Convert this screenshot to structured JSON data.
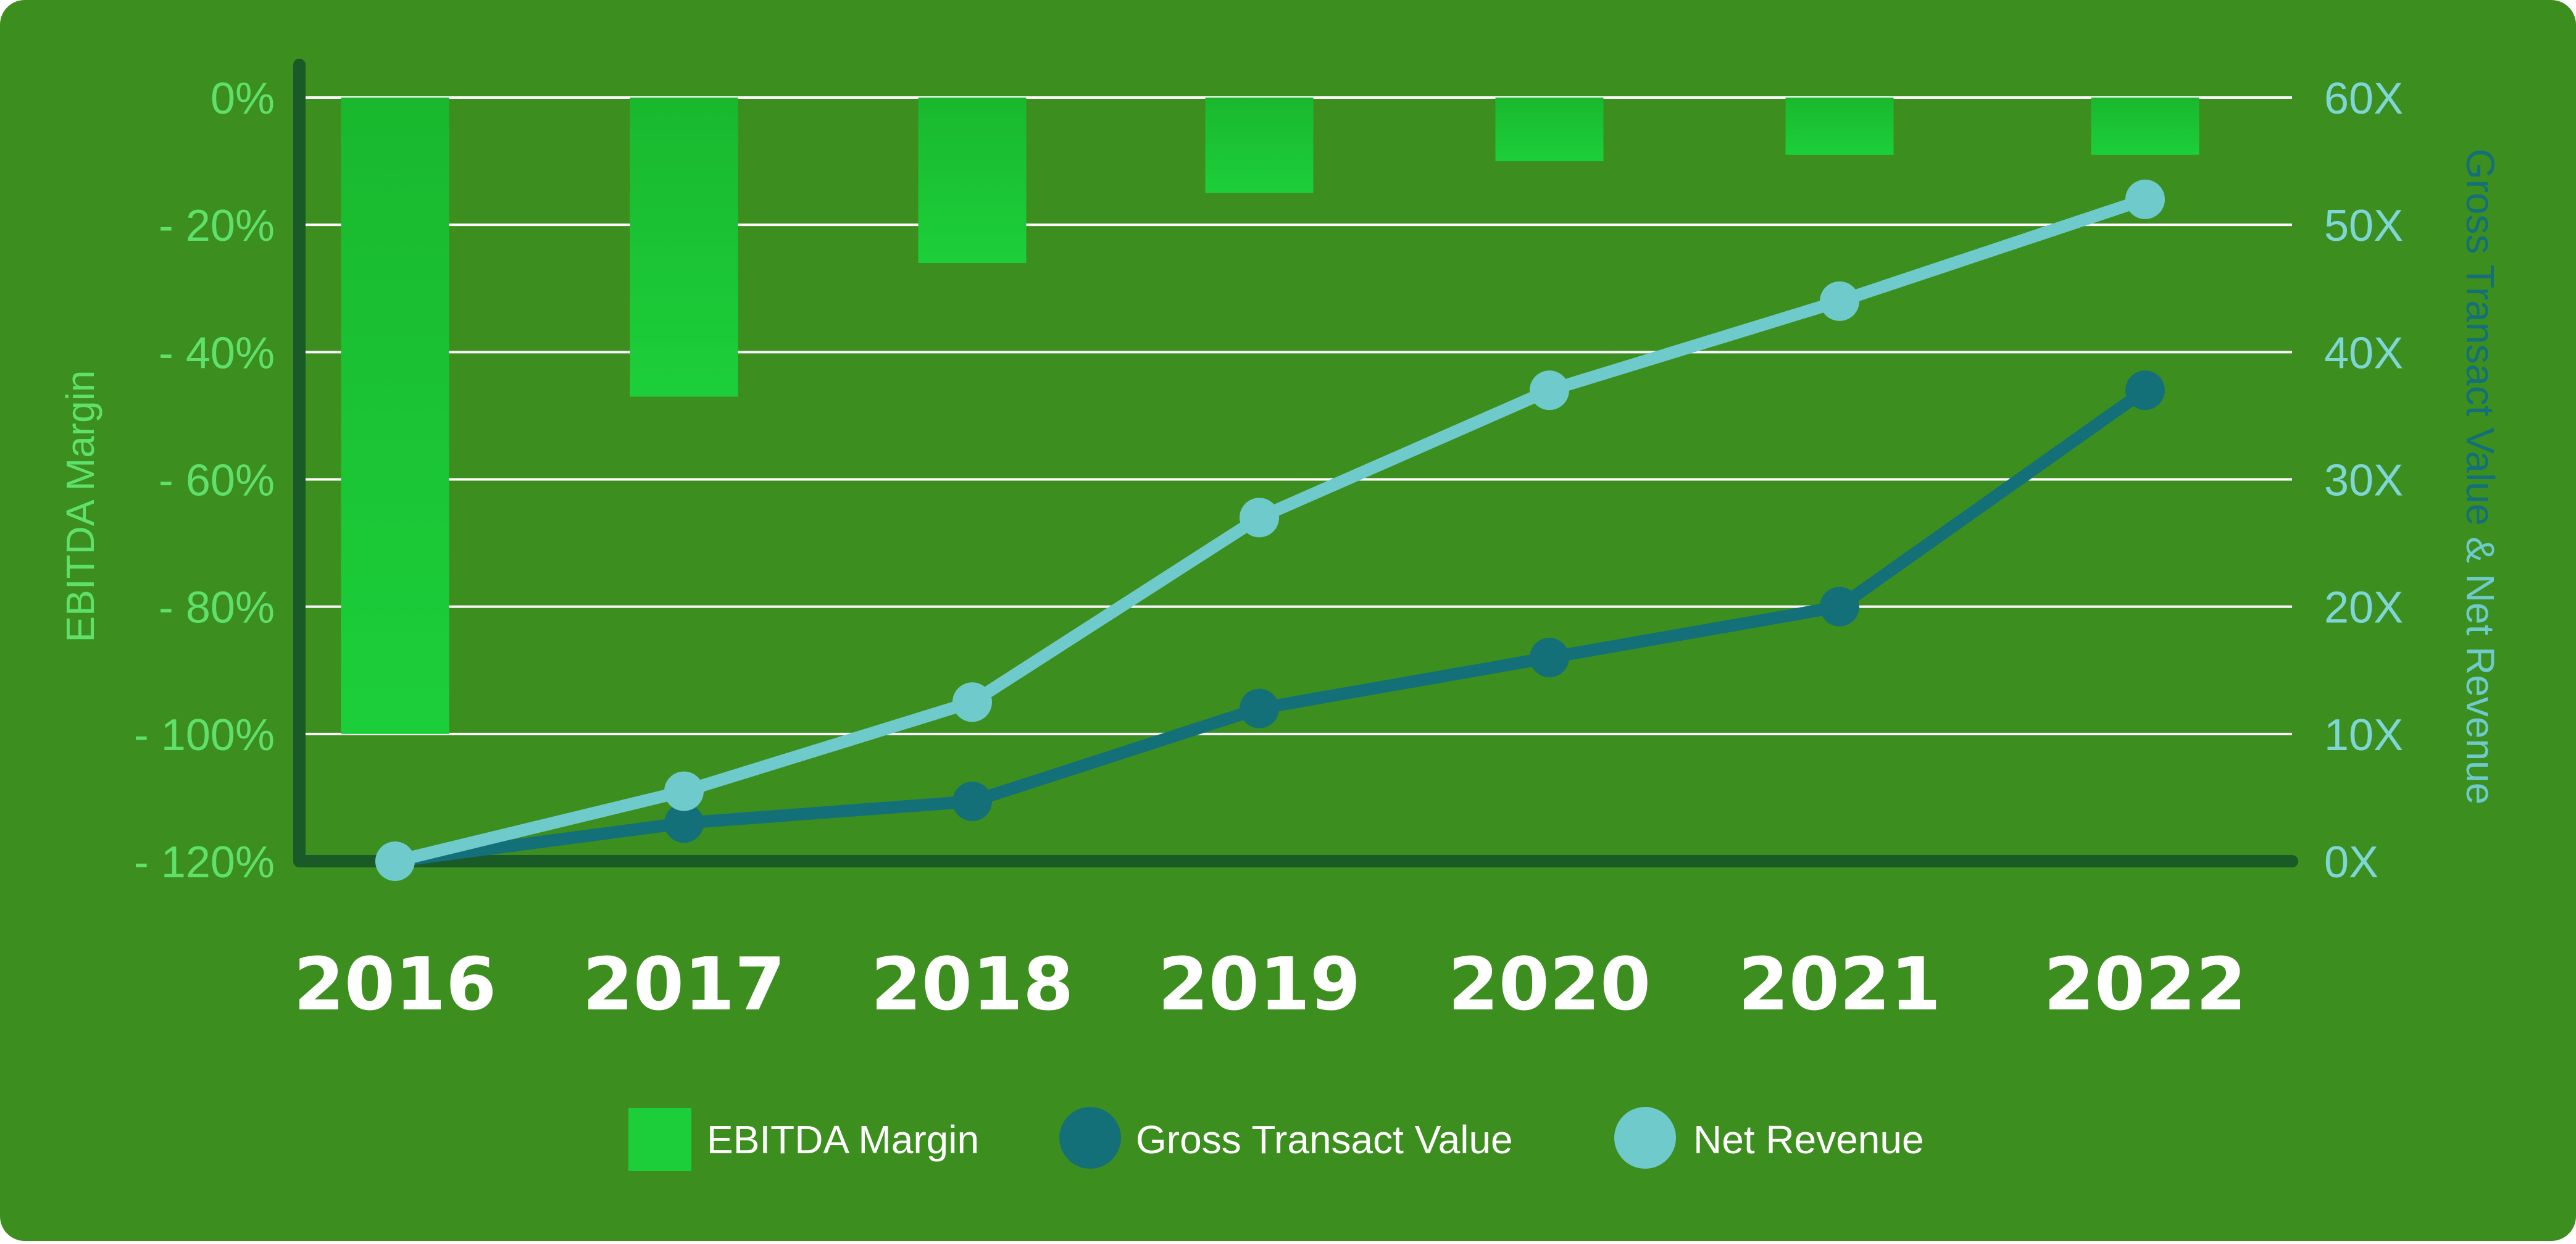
{
  "chart_data": {
    "type": "bar+line",
    "categories": [
      "2016",
      "2017",
      "2018",
      "2019",
      "2020",
      "2021",
      "2022"
    ],
    "left_axis": {
      "label": "EBITDA Margin",
      "ylim": [
        -120,
        0
      ],
      "ticks": [
        0,
        -20,
        -40,
        -60,
        -80,
        -100,
        -120
      ],
      "tick_labels": [
        "0%",
        "- 20%",
        "- 40%",
        "- 60%",
        "- 80%",
        "- 100%",
        "- 120%"
      ]
    },
    "right_axis": {
      "label_part1": "Gross Transact Value",
      "label_part2": " & Net Revenue",
      "ylim": [
        0,
        60
      ],
      "ticks": [
        60,
        50,
        40,
        30,
        20,
        10,
        0
      ],
      "tick_labels": [
        "60X",
        "50X",
        "40X",
        "30X",
        "20X",
        "10X",
        "0X"
      ]
    },
    "series": [
      {
        "name": "EBITDA Margin",
        "type": "bar",
        "axis": "left",
        "color": "#1ccf3a",
        "values": [
          -100,
          -47,
          -26,
          -15,
          -10,
          -9,
          -9
        ]
      },
      {
        "name": "Gross Transact Value",
        "type": "line",
        "axis": "right",
        "color": "#137078",
        "values": [
          0,
          3,
          4.7,
          12,
          16,
          20,
          37
        ]
      },
      {
        "name": "Net Revenue",
        "type": "line",
        "axis": "right",
        "color": "#6fcbcb",
        "values": [
          0,
          5.5,
          12.5,
          27,
          37,
          44,
          52
        ]
      }
    ],
    "grid": true,
    "legend": "bottom-center"
  },
  "colors": {
    "background": "#3c8f1e",
    "axis_line": "#1a5a26",
    "grid_line": "#ffffff",
    "left_tick": "#5ee06a",
    "right_tick": "#7fd6d6",
    "right_title_dark": "#137078",
    "right_title_light": "#6fcbcb"
  }
}
